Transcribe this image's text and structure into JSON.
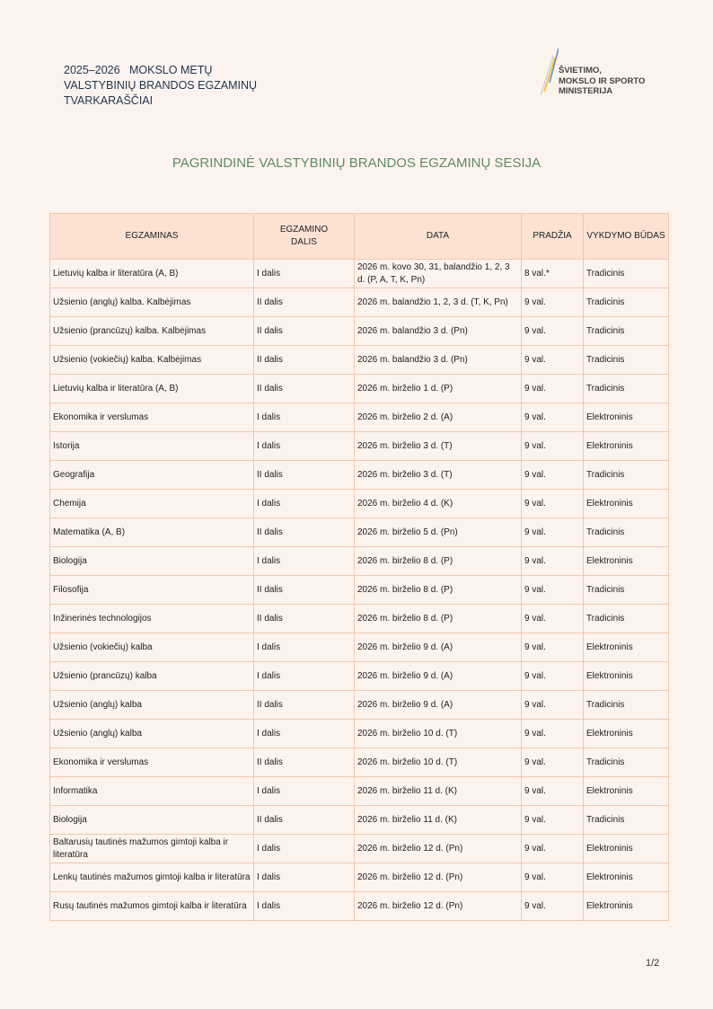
{
  "header": {
    "line1": "2025–2026   MOKSLO METŲ",
    "line2": "VALSTYBINIŲ BRANDOS EGZAMINŲ",
    "line3": "TVARKARAŠČIAI"
  },
  "logo": {
    "text": "ŠVIETIMO, MOKSLO IR SPORTO MINISTERIJA",
    "line1": "ŠVIETIMO,",
    "line2": "MOKSLO IR SPORTO",
    "line3": "MINISTERIJA"
  },
  "title": "PAGRINDINĖ VALSTYBINIŲ BRANDOS EGZAMINŲ SESIJA",
  "table": {
    "columns": [
      "EGZAMINAS",
      "EGZAMINO DALIS",
      "DATA",
      "PRADŽIA",
      "VYKDYMO BŪDAS"
    ],
    "rows": [
      [
        "Lietuvių kalba ir literatūra (A, B)",
        "I dalis",
        "2026 m. kovo 30, 31, balandžio 1, 2, 3 d. (P, A, T, K, Pn)",
        "8 val.*",
        "Tradicinis"
      ],
      [
        "Užsienio (anglų) kalba. Kalbėjimas",
        "II dalis",
        "2026 m. balandžio 1, 2, 3 d. (T, K, Pn)",
        "9 val.",
        "Tradicinis"
      ],
      [
        "Užsienio (prancūzų) kalba. Kalbėjimas",
        "II dalis",
        "2026 m. balandžio 3 d. (Pn)",
        "9 val.",
        "Tradicinis"
      ],
      [
        "Užsienio (vokiečių) kalba. Kalbėjimas",
        "II dalis",
        "2026 m. balandžio 3 d. (Pn)",
        "9 val.",
        "Tradicinis"
      ],
      [
        "Lietuvių kalba ir literatūra (A, B)",
        "II dalis",
        "2026 m. birželio 1 d. (P)",
        "9 val.",
        "Tradicinis"
      ],
      [
        "Ekonomika ir verslumas",
        "I dalis",
        "2026 m. birželio 2 d. (A)",
        "9 val.",
        "Elektroninis"
      ],
      [
        "Istorija",
        "I dalis",
        "2026 m. birželio 3 d. (T)",
        "9 val.",
        "Elektroninis"
      ],
      [
        "Geografija",
        "II dalis",
        "2026 m. birželio 3 d. (T)",
        "9 val.",
        "Tradicinis"
      ],
      [
        "Chemija",
        "I dalis",
        "2026 m. birželio 4 d. (K)",
        "9 val.",
        "Elektroninis"
      ],
      [
        "Matematika (A, B)",
        "II dalis",
        "2026 m. birželio 5 d. (Pn)",
        "9 val.",
        "Tradicinis"
      ],
      [
        "Biologija",
        "I dalis",
        "2026 m. birželio 8 d. (P)",
        "9 val.",
        "Elektroninis"
      ],
      [
        "Filosofija",
        "II dalis",
        "2026 m. birželio 8 d. (P)",
        "9 val.",
        "Tradicinis"
      ],
      [
        "Inžinerinės technologijos",
        "II dalis",
        "2026 m. birželio 8 d. (P)",
        "9 val.",
        "Tradicinis"
      ],
      [
        "Užsienio (vokiečių) kalba",
        "I dalis",
        "2026 m. birželio 9 d. (A)",
        "9 val.",
        "Elektroninis"
      ],
      [
        "Užsienio (prancūzų) kalba",
        "I dalis",
        "2026 m. birželio 9 d. (A)",
        "9 val.",
        "Elektroninis"
      ],
      [
        "Užsienio (anglų) kalba",
        "II dalis",
        "2026 m. birželio 9 d. (A)",
        "9 val.",
        "Tradicinis"
      ],
      [
        "Užsienio (anglų) kalba",
        "I dalis",
        "2026 m. birželio 10 d. (T)",
        "9 val.",
        "Elektroninis"
      ],
      [
        "Ekonomika ir verslumas",
        "II dalis",
        "2026 m. birželio 10 d. (T)",
        "9 val.",
        "Tradicinis"
      ],
      [
        "Informatika",
        "I dalis",
        "2026 m. birželio 11 d. (K)",
        "9 val.",
        "Elektroninis"
      ],
      [
        "Biologija",
        "II dalis",
        "2026 m. birželio 11 d. (K)",
        "9 val.",
        "Tradicinis"
      ],
      [
        "Baltarusių tautinės mažumos gimtoji kalba ir literatūra",
        "I dalis",
        "2026 m. birželio 12 d. (Pn)",
        "9 val.",
        "Elektroninis"
      ],
      [
        "Lenkų tautinės mažumos gimtoji kalba ir literatūra",
        "I dalis",
        "2026 m. birželio 12 d. (Pn)",
        "9 val.",
        "Elektroninis"
      ],
      [
        "Rusų tautinės mažumos gimtoji kalba ir literatūra",
        "I dalis",
        "2026 m. birželio 12 d. (Pn)",
        "9 val.",
        "Elektroninis"
      ]
    ]
  },
  "page_number": "1/2"
}
